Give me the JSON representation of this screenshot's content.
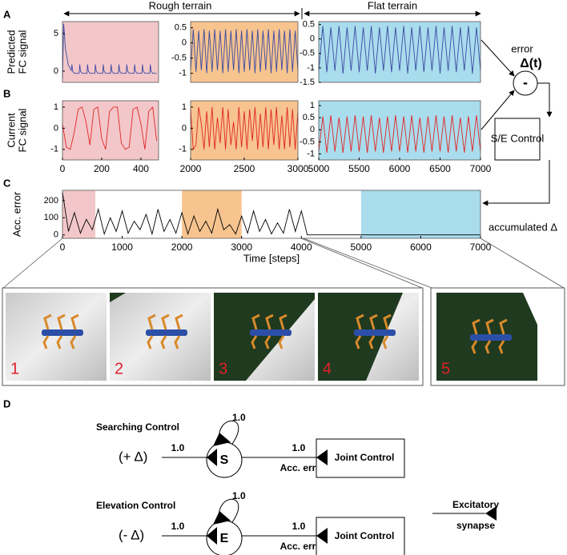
{
  "chart_data": [
    {
      "type": "line",
      "panel": "A",
      "ylabel": [
        "Predicted",
        "FC signal"
      ],
      "color": "#3a4aa3",
      "background": "#f3c7c9",
      "xlim": [
        0,
        490
      ],
      "ylim": [
        -1.5,
        6.6
      ],
      "yticks": [
        0,
        5
      ],
      "x": [
        0,
        6,
        15,
        30,
        45,
        48,
        52,
        60,
        85,
        88,
        92,
        100,
        125,
        128,
        132,
        140,
        165,
        168,
        172,
        180,
        205,
        208,
        212,
        220,
        245,
        248,
        252,
        260,
        285,
        288,
        292,
        300,
        325,
        328,
        332,
        340,
        365,
        368,
        372,
        380,
        405,
        408,
        412,
        420,
        445,
        448,
        452,
        460,
        480
      ],
      "values": [
        -1,
        6.3,
        3,
        0.8,
        0.1,
        0.9,
        0,
        -0.3,
        -0.3,
        0.9,
        0,
        -0.3,
        -0.3,
        0.9,
        0,
        -0.3,
        -0.3,
        0.9,
        0,
        -0.3,
        -0.3,
        0.9,
        0,
        -0.3,
        -0.3,
        0.9,
        0,
        -0.3,
        -0.3,
        0.9,
        0,
        -0.3,
        -0.3,
        0.9,
        0,
        -0.3,
        -0.3,
        0.9,
        0,
        -0.3,
        -0.3,
        0.9,
        0,
        -0.3,
        -0.3,
        0.9,
        0,
        -0.3,
        -0.3
      ]
    },
    {
      "type": "line",
      "color": "#3a4aa3",
      "background": "#f7c490",
      "xlim": [
        2000,
        3000
      ],
      "ylim": [
        -1.3,
        0.7
      ],
      "yticks": [
        -1,
        -0.5,
        0,
        0.5
      ],
      "x": [
        2000,
        2025,
        2050,
        2075,
        2100,
        2125,
        2150,
        2175,
        2200,
        2225,
        2250,
        2275,
        2300,
        2325,
        2350,
        2375,
        2400,
        2425,
        2450,
        2475,
        2500,
        2525,
        2550,
        2575,
        2600,
        2625,
        2650,
        2675,
        2700,
        2725,
        2750,
        2775,
        2800,
        2825,
        2850,
        2875,
        2900,
        2925,
        2950,
        2975,
        3000
      ],
      "values": [
        -0.9,
        0.45,
        -0.95,
        0.4,
        -0.9,
        0.45,
        -1,
        0.4,
        -0.95,
        0.45,
        -0.9,
        0.4,
        -1,
        0.45,
        -0.95,
        0.4,
        -0.9,
        0.45,
        -1,
        0.4,
        -0.95,
        0.45,
        -0.9,
        0.4,
        -1,
        0.45,
        -0.95,
        0.4,
        -0.9,
        0.45,
        -1,
        0.4,
        -0.95,
        0.45,
        -0.9,
        0.4,
        -1,
        0.45,
        -0.95,
        0.4,
        -0.9
      ]
    },
    {
      "type": "line",
      "color": "#3a4aa3",
      "background": "#a9dcec",
      "xlim": [
        5000,
        7000
      ],
      "ylim": [
        -1.5,
        0.6
      ],
      "yticks": [
        -1.5,
        -1,
        -0.5,
        0,
        0.5
      ],
      "x": [
        5000,
        5050,
        5100,
        5150,
        5200,
        5250,
        5300,
        5350,
        5400,
        5450,
        5500,
        5550,
        5600,
        5650,
        5700,
        5750,
        5800,
        5850,
        5900,
        5950,
        6000,
        6050,
        6100,
        6150,
        6200,
        6250,
        6300,
        6350,
        6400,
        6450,
        6500,
        6550,
        6600,
        6650,
        6700,
        6750,
        6800,
        6850,
        6900,
        6950,
        7000
      ],
      "values": [
        -1.1,
        0.45,
        -1.15,
        0.4,
        -1.1,
        0.45,
        -1.2,
        0.4,
        -1.1,
        0.45,
        -1.15,
        0.4,
        -1.1,
        0.45,
        -1.2,
        0.4,
        -1.1,
        0.45,
        -1.15,
        0.4,
        -1.1,
        0.45,
        -1.2,
        0.4,
        -1.1,
        0.45,
        -1.15,
        0.4,
        -1.1,
        0.45,
        -1.2,
        0.4,
        -1.1,
        0.45,
        -1.15,
        0.4,
        -1.1,
        0.45,
        -1.2,
        0.4,
        -1.1
      ]
    },
    {
      "type": "line",
      "panel": "B",
      "ylabel": [
        "Current",
        "FC signal"
      ],
      "color": "#e02626",
      "background": "#f3c7c9",
      "xlim": [
        0,
        490
      ],
      "ylim": [
        -1.5,
        1.3
      ],
      "yticks": [
        -1,
        0,
        1
      ],
      "xticks": [
        0,
        200,
        400
      ],
      "x": [
        0,
        20,
        40,
        60,
        80,
        100,
        120,
        140,
        160,
        180,
        200,
        220,
        240,
        260,
        280,
        300,
        320,
        340,
        360,
        380,
        400,
        420,
        440,
        460,
        480
      ],
      "values": [
        0.2,
        -0.9,
        -1,
        -0.2,
        0.9,
        1,
        0.3,
        -0.8,
        0.9,
        1,
        -0.5,
        -1,
        0.8,
        1,
        1,
        -0.7,
        -1,
        -0.9,
        0.9,
        1,
        0.2,
        -1,
        0.8,
        1,
        -0.6
      ]
    },
    {
      "type": "line",
      "color": "#e02626",
      "background": "#f7c490",
      "xlim": [
        2000,
        3000
      ],
      "ylim": [
        -1.5,
        1.3
      ],
      "yticks": [
        -1,
        0,
        1
      ],
      "xticks": [
        2000,
        2500,
        3000
      ],
      "x": [
        2000,
        2025,
        2050,
        2075,
        2100,
        2125,
        2150,
        2175,
        2200,
        2225,
        2250,
        2275,
        2300,
        2325,
        2350,
        2375,
        2400,
        2425,
        2450,
        2475,
        2500,
        2525,
        2550,
        2575,
        2600,
        2625,
        2650,
        2675,
        2700,
        2725,
        2750,
        2775,
        2800,
        2825,
        2850,
        2875,
        2900,
        2925,
        2950,
        2975,
        3000
      ],
      "values": [
        0.9,
        -1,
        -0.8,
        1,
        0.2,
        -1,
        0.8,
        -0.9,
        1,
        -1,
        0.5,
        -0.7,
        1,
        -1,
        0.9,
        -0.8,
        0.3,
        -1,
        1,
        -0.9,
        0.8,
        -1,
        0.9,
        -0.6,
        1,
        -1,
        0.7,
        -0.9,
        1,
        -1,
        0.9,
        -0.8,
        1,
        -1,
        0.6,
        -1,
        1,
        -0.9,
        0.9,
        -1,
        0.8
      ]
    },
    {
      "type": "line",
      "color": "#e02626",
      "background": "#a9dcec",
      "xlim": [
        5000,
        7000
      ],
      "ylim": [
        -1.25,
        1.2
      ],
      "yticks": [
        -1,
        -0.5,
        0,
        0.5,
        1
      ],
      "xticks": [
        5000,
        5500,
        6000,
        6500,
        7000
      ],
      "x": [
        5000,
        5050,
        5100,
        5150,
        5200,
        5250,
        5300,
        5350,
        5400,
        5450,
        5500,
        5550,
        5600,
        5650,
        5700,
        5750,
        5800,
        5850,
        5900,
        5950,
        6000,
        6050,
        6100,
        6150,
        6200,
        6250,
        6300,
        6350,
        6400,
        6450,
        6500,
        6550,
        6600,
        6650,
        6700,
        6750,
        6800,
        6850,
        6900,
        6950,
        7000
      ],
      "values": [
        -0.9,
        0.55,
        -0.95,
        0.6,
        -0.9,
        0.5,
        -0.95,
        0.55,
        -0.9,
        0.6,
        -0.9,
        0.55,
        -0.95,
        0.6,
        -0.9,
        0.5,
        -0.95,
        0.55,
        -0.9,
        0.6,
        -0.9,
        0.55,
        -0.95,
        0.6,
        -0.9,
        0.5,
        -0.95,
        0.55,
        -0.9,
        0.6,
        -0.9,
        0.55,
        -0.95,
        0.6,
        -0.9,
        0.5,
        -0.95,
        0.55,
        -0.9,
        0.6,
        -0.9
      ]
    },
    {
      "type": "line",
      "panel": "C",
      "ylabel": [
        "Acc. error"
      ],
      "xlabel": "Time [steps]",
      "color": "#000000",
      "background": "#ffffff",
      "regions": [
        {
          "x": [
            0,
            550
          ],
          "color": "#f3c7c9"
        },
        {
          "x": [
            2000,
            3000
          ],
          "color": "#f7c490"
        },
        {
          "x": [
            5000,
            7000
          ],
          "color": "#a9dcec"
        }
      ],
      "xlim": [
        0,
        7000
      ],
      "ylim": [
        -20,
        260
      ],
      "yticks": [
        0,
        100,
        200
      ],
      "xticks": [
        0,
        1000,
        2000,
        3000,
        4000,
        5000,
        6000,
        7000
      ],
      "x": [
        0,
        100,
        200,
        300,
        400,
        500,
        600,
        700,
        800,
        900,
        1000,
        1100,
        1200,
        1300,
        1400,
        1500,
        1600,
        1700,
        1800,
        1900,
        2000,
        2100,
        2200,
        2300,
        2400,
        2500,
        2600,
        2700,
        2800,
        2900,
        3000,
        3100,
        3200,
        3300,
        3400,
        3500,
        3600,
        3700,
        3800,
        3900,
        4000,
        4100,
        7000
      ],
      "values": [
        250,
        20,
        130,
        10,
        90,
        30,
        150,
        5,
        100,
        20,
        140,
        10,
        80,
        30,
        120,
        5,
        150,
        20,
        90,
        10,
        130,
        5,
        110,
        20,
        80,
        10,
        150,
        30,
        60,
        5,
        110,
        10,
        140,
        20,
        90,
        5,
        70,
        10,
        150,
        20,
        140,
        0,
        0
      ]
    }
  ],
  "labels": {
    "terrain": [
      "Rough terrain",
      "Flat terrain"
    ],
    "error": "error",
    "delta_t": "Δ(t)",
    "minus": "-",
    "se_control": "S/E Control",
    "accumulated": "accumulated Δ",
    "panel_d": "D"
  },
  "snapshots": [
    "1",
    "2",
    "3",
    "4",
    "5"
  ],
  "diagram": {
    "rows": [
      {
        "title": "Searching Control",
        "input": "(+ Δ)",
        "in_weight": "1.0",
        "self_weight": "1.0",
        "neuron": "S",
        "out_weight": "1.0",
        "out_label": "Acc. error",
        "target": "Joint Control"
      },
      {
        "title": "Elevation Control",
        "input": "(- Δ)",
        "in_weight": "1.0",
        "self_weight": "1.0",
        "neuron": "E",
        "out_weight": "1.0",
        "out_label": "Acc. error",
        "target": "Joint Control"
      }
    ],
    "legend": [
      "Excitatory",
      "synapse"
    ]
  }
}
